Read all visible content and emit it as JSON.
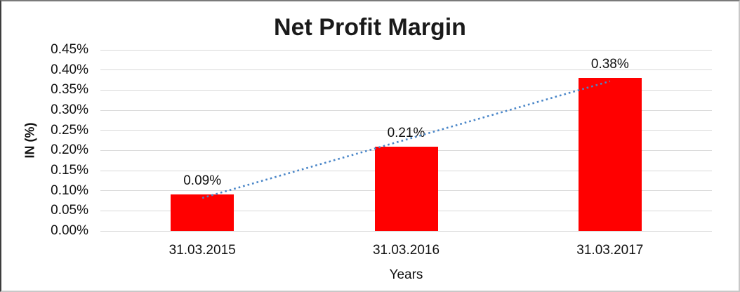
{
  "window": {
    "background": "#ffffff"
  },
  "chart_data": {
    "type": "bar",
    "title": "Net Profit Margin",
    "xlabel": "Years",
    "ylabel": "IN (%)",
    "categories": [
      "31.03.2015",
      "31.03.2016",
      "31.03.2017"
    ],
    "values": [
      0.09,
      0.21,
      0.38
    ],
    "value_labels": [
      "0.09%",
      "0.21%",
      "0.38%"
    ],
    "ylim": [
      0,
      0.45
    ],
    "ytick_step": 0.05,
    "ytick_labels": [
      "0.00%",
      "0.05%",
      "0.10%",
      "0.15%",
      "0.20%",
      "0.25%",
      "0.30%",
      "0.35%",
      "0.40%",
      "0.45%"
    ],
    "grid": true,
    "legend": "none",
    "colors": {
      "bar": "#ff0000",
      "gridline": "#d9d9d9",
      "text": "#111111",
      "title": "#1a1a1a",
      "trendline": "#4a86c8"
    },
    "trendline": {
      "type": "linear",
      "style": "dotted",
      "start_value": 0.082,
      "end_value": 0.372
    }
  }
}
